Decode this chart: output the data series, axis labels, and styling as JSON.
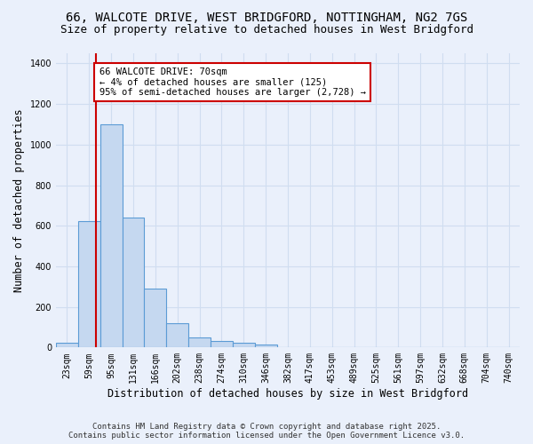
{
  "title_line1": "66, WALCOTE DRIVE, WEST BRIDGFORD, NOTTINGHAM, NG2 7GS",
  "title_line2": "Size of property relative to detached houses in West Bridgford",
  "xlabel": "Distribution of detached houses by size in West Bridgford",
  "ylabel": "Number of detached properties",
  "categories": [
    "23sqm",
    "59sqm",
    "95sqm",
    "131sqm",
    "166sqm",
    "202sqm",
    "238sqm",
    "274sqm",
    "310sqm",
    "346sqm",
    "382sqm",
    "417sqm",
    "453sqm",
    "489sqm",
    "525sqm",
    "561sqm",
    "597sqm",
    "632sqm",
    "668sqm",
    "704sqm",
    "740sqm"
  ],
  "values": [
    25,
    625,
    1100,
    640,
    290,
    120,
    50,
    30,
    25,
    15,
    0,
    0,
    0,
    0,
    0,
    0,
    0,
    0,
    0,
    0,
    0
  ],
  "bar_color": "#c5d8f0",
  "bar_edge_color": "#5b9bd5",
  "vline_color": "#cc0000",
  "vline_x": 1.3,
  "annotation_text": "66 WALCOTE DRIVE: 70sqm\n← 4% of detached houses are smaller (125)\n95% of semi-detached houses are larger (2,728) →",
  "annotation_box_color": "#ffffff",
  "annotation_box_edge": "#cc0000",
  "ylim": [
    0,
    1450
  ],
  "yticks": [
    0,
    200,
    400,
    600,
    800,
    1000,
    1200,
    1400
  ],
  "bg_color": "#eaf0fb",
  "grid_color": "#d0ddf0",
  "footer_line1": "Contains HM Land Registry data © Crown copyright and database right 2025.",
  "footer_line2": "Contains public sector information licensed under the Open Government Licence v3.0.",
  "title_fontsize": 10,
  "subtitle_fontsize": 9,
  "tick_fontsize": 7,
  "xlabel_fontsize": 8.5,
  "ylabel_fontsize": 8.5,
  "annotation_fontsize": 7.5,
  "footer_fontsize": 6.5
}
